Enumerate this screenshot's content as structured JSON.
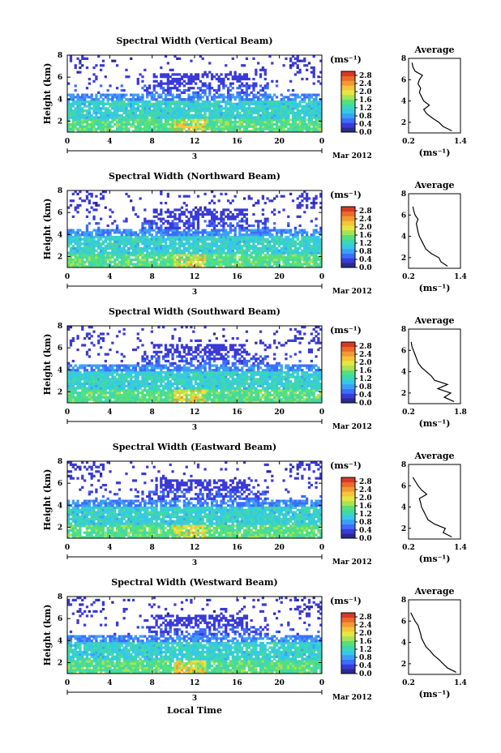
{
  "figure": {
    "xlabel": "Local Time",
    "date_label": "Mar 2012",
    "day_label": "3",
    "cbar_unit": "(ms⁻¹)",
    "avg_title": "Average",
    "avg_xlabel": "(ms⁻¹)",
    "ylabel": "Height (km)"
  },
  "colors": {
    "colormap": [
      "#2b2b8c",
      "#3a3ad8",
      "#3d6cff",
      "#3ba0f4",
      "#35c8e8",
      "#3fd7b0",
      "#56e07a",
      "#a8e356",
      "#e6e640",
      "#f5c43a",
      "#f29a33",
      "#ec6a2a",
      "#d63a25"
    ]
  },
  "chart_data": [
    {
      "type": "heatmap",
      "title": "Spectral Width (Vertical Beam)",
      "xlim": [
        0,
        24
      ],
      "ylim": [
        1,
        8
      ],
      "xticks": [
        "0",
        "4",
        "8",
        "12",
        "16",
        "20",
        "0"
      ],
      "yticks": [
        "2",
        "4",
        "6",
        "8"
      ],
      "colorbar": {
        "ticks": [
          "0.0",
          "0.4",
          "0.8",
          "1.2",
          "1.6",
          "2.0",
          "2.4",
          "2.8"
        ],
        "range": [
          0,
          3.0
        ]
      },
      "average_profile": {
        "xlim": [
          0.2,
          1.4
        ],
        "ylim": [
          1,
          8
        ],
        "xticks": [
          "0.2",
          "1.4"
        ],
        "yticks": [
          "2",
          "4",
          "6",
          "8"
        ],
        "x": [
          1.2,
          1.0,
          0.9,
          0.75,
          0.62,
          0.55,
          0.68,
          0.55,
          0.5,
          0.45,
          0.48,
          0.42,
          0.45,
          0.52,
          0.35,
          0.3,
          0.28
        ],
        "y": [
          1.2,
          1.6,
          2.0,
          2.4,
          2.8,
          3.2,
          3.6,
          4.0,
          4.4,
          4.8,
          5.2,
          5.6,
          6.0,
          6.4,
          6.8,
          7.2,
          7.6
        ]
      }
    },
    {
      "type": "heatmap",
      "title": "Spectral Width (Northward Beam)",
      "xlim": [
        0,
        24
      ],
      "ylim": [
        1,
        8
      ],
      "xticks": [
        "0",
        "4",
        "8",
        "12",
        "16",
        "20",
        "0"
      ],
      "yticks": [
        "2",
        "4",
        "6",
        "8"
      ],
      "colorbar": {
        "ticks": [
          "0.0",
          "0.4",
          "0.8",
          "1.2",
          "1.6",
          "2.0",
          "2.4",
          "2.8"
        ],
        "range": [
          0,
          3.0
        ]
      },
      "average_profile": {
        "xlim": [
          0.2,
          1.4
        ],
        "ylim": [
          1,
          8
        ],
        "xticks": [
          "0.2",
          "1.4"
        ],
        "yticks": [
          "2",
          "4",
          "6",
          "8"
        ],
        "x": [
          1.1,
          0.95,
          0.9,
          0.72,
          0.6,
          0.55,
          0.5,
          0.45,
          0.42,
          0.4,
          0.38,
          0.42,
          0.35,
          0.32,
          0.3
        ],
        "y": [
          1.2,
          1.6,
          2.0,
          2.4,
          2.8,
          3.2,
          3.6,
          4.0,
          4.4,
          4.8,
          5.2,
          5.6,
          6.0,
          6.4,
          6.8
        ]
      }
    },
    {
      "type": "heatmap",
      "title": "Spectral Width (Southward Beam)",
      "xlim": [
        0,
        24
      ],
      "ylim": [
        1,
        8
      ],
      "xticks": [
        "0",
        "4",
        "8",
        "12",
        "16",
        "20",
        "0"
      ],
      "yticks": [
        "2",
        "4",
        "6",
        "8"
      ],
      "colorbar": {
        "ticks": [
          "0.0",
          "0.4",
          "0.8",
          "1.2",
          "1.6",
          "2.0",
          "2.4",
          "2.8"
        ],
        "range": [
          0,
          3.0
        ]
      },
      "average_profile": {
        "xlim": [
          0.2,
          1.8
        ],
        "ylim": [
          1,
          8
        ],
        "xticks": [
          "0.2",
          "1.8"
        ],
        "yticks": [
          "2",
          "4",
          "6",
          "8"
        ],
        "x": [
          1.6,
          1.3,
          1.5,
          1.1,
          1.4,
          1.0,
          0.9,
          0.75,
          0.6,
          0.5,
          0.45,
          0.4,
          0.35,
          0.3,
          0.28
        ],
        "y": [
          1.2,
          1.6,
          2.0,
          2.4,
          2.8,
          3.2,
          3.6,
          4.0,
          4.4,
          4.8,
          5.2,
          5.6,
          6.0,
          6.4,
          6.8
        ]
      }
    },
    {
      "type": "heatmap",
      "title": "Spectral Width (Eastward Beam)",
      "xlim": [
        0,
        24
      ],
      "ylim": [
        1,
        8
      ],
      "xticks": [
        "0",
        "4",
        "8",
        "12",
        "16",
        "20",
        "0"
      ],
      "yticks": [
        "2",
        "4",
        "6",
        "8"
      ],
      "colorbar": {
        "ticks": [
          "0.0",
          "0.4",
          "0.8",
          "1.2",
          "1.6",
          "2.0",
          "2.4",
          "2.8"
        ],
        "range": [
          0,
          3.0
        ]
      },
      "average_profile": {
        "xlim": [
          0.2,
          1.4
        ],
        "ylim": [
          1,
          8
        ],
        "xticks": [
          "0.2",
          "1.4"
        ],
        "yticks": [
          "2",
          "4",
          "6",
          "8"
        ],
        "x": [
          1.2,
          1.0,
          1.05,
          0.8,
          0.65,
          0.6,
          0.55,
          0.5,
          0.48,
          0.45,
          0.62,
          0.5,
          0.42,
          0.36,
          0.3
        ],
        "y": [
          1.2,
          1.6,
          2.0,
          2.4,
          2.8,
          3.2,
          3.6,
          4.0,
          4.4,
          4.8,
          5.2,
          5.6,
          6.0,
          6.4,
          6.8
        ]
      }
    },
    {
      "type": "heatmap",
      "title": "Spectral Width (Westward Beam)",
      "xlim": [
        0,
        24
      ],
      "ylim": [
        1,
        8
      ],
      "xticks": [
        "0",
        "4",
        "8",
        "12",
        "16",
        "20",
        "0"
      ],
      "yticks": [
        "2",
        "4",
        "6",
        "8"
      ],
      "colorbar": {
        "ticks": [
          "0.0",
          "0.4",
          "0.8",
          "1.2",
          "1.6",
          "2.0",
          "2.4",
          "2.8"
        ],
        "range": [
          0,
          3.0
        ]
      },
      "average_profile": {
        "xlim": [
          0.2,
          1.4
        ],
        "ylim": [
          1,
          8
        ],
        "xticks": [
          "0.2",
          "1.4"
        ],
        "yticks": [
          "2",
          "4",
          "6",
          "8"
        ],
        "x": [
          1.3,
          1.1,
          1.0,
          0.9,
          0.78,
          0.7,
          0.6,
          0.55,
          0.5,
          0.48,
          0.45,
          0.42,
          0.35,
          0.3,
          0.25
        ],
        "y": [
          1.2,
          1.6,
          2.0,
          2.4,
          2.8,
          3.2,
          3.6,
          4.0,
          4.4,
          4.8,
          5.2,
          5.6,
          6.0,
          6.4,
          6.8
        ]
      }
    }
  ]
}
